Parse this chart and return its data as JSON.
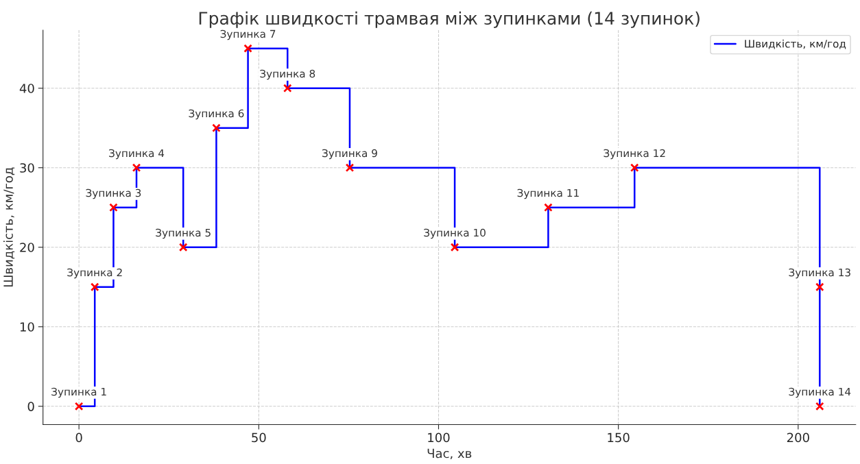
{
  "chart_data": {
    "type": "step",
    "title": "Графік швидкості трамвая між зупинками (14 зупинок)",
    "xlabel": "Час, хв",
    "ylabel": "Швидкість, км/год",
    "x": [
      0,
      4.4,
      9.6,
      16,
      29,
      38.2,
      47,
      58,
      75.3,
      104.5,
      130.5,
      154.5,
      206,
      206
    ],
    "series": [
      {
        "name": "Швидкість, км/год",
        "color": "#0000ff",
        "marker": "none",
        "values": [
          0,
          15,
          25,
          30,
          20,
          35,
          45,
          40,
          30,
          20,
          25,
          30,
          15,
          0
        ]
      },
      {
        "type": "scatter",
        "color": "#ff0000",
        "marker": "cross",
        "values": [
          0,
          15,
          25,
          30,
          20,
          35,
          45,
          40,
          30,
          20,
          25,
          30,
          15,
          0
        ]
      }
    ],
    "annotations": [
      {
        "text": "Зупинка 1",
        "x": 0,
        "y": 0
      },
      {
        "text": "Зупинка 2",
        "x": 4.4,
        "y": 15
      },
      {
        "text": "Зупинка 3",
        "x": 9.6,
        "y": 25
      },
      {
        "text": "Зупинка 4",
        "x": 16,
        "y": 30
      },
      {
        "text": "Зупинка 5",
        "x": 29,
        "y": 20
      },
      {
        "text": "Зупинка 6",
        "x": 38.2,
        "y": 35
      },
      {
        "text": "Зупинка 7",
        "x": 47,
        "y": 45
      },
      {
        "text": "Зупинка 8",
        "x": 58,
        "y": 40
      },
      {
        "text": "Зупинка 9",
        "x": 75.3,
        "y": 30
      },
      {
        "text": "Зупинка 10",
        "x": 104.5,
        "y": 20
      },
      {
        "text": "Зупинка 11",
        "x": 130.5,
        "y": 25
      },
      {
        "text": "Зупинка 12",
        "x": 154.5,
        "y": 30
      },
      {
        "text": "Зупинка 13",
        "x": 206,
        "y": 15
      },
      {
        "text": "Зупинка 14",
        "x": 206,
        "y": 0
      }
    ],
    "xlim": [
      -10,
      216
    ],
    "ylim": [
      -2.3,
      47.3
    ],
    "xticks": [
      0,
      50,
      100,
      150,
      200
    ],
    "yticks": [
      0,
      10,
      20,
      30,
      40
    ],
    "grid": true,
    "legend": "top right"
  }
}
